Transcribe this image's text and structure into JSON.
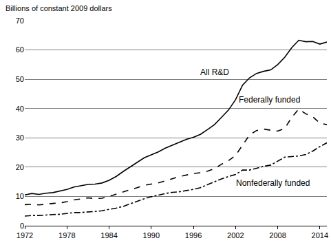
{
  "chart_data": {
    "type": "line",
    "ylabel": "Billions of constant 2009 dollars",
    "x": [
      1972,
      1973,
      1974,
      1975,
      1976,
      1977,
      1978,
      1979,
      1980,
      1981,
      1982,
      1983,
      1984,
      1985,
      1986,
      1987,
      1988,
      1989,
      1990,
      1991,
      1992,
      1993,
      1994,
      1995,
      1996,
      1997,
      1998,
      1999,
      2000,
      2001,
      2002,
      2003,
      2004,
      2005,
      2006,
      2007,
      2008,
      2009,
      2010,
      2011,
      2012,
      2013,
      2014,
      2015
    ],
    "series": [
      {
        "name": "All R&D",
        "color": "#000000",
        "line_style": "solid",
        "values": [
          10.5,
          11,
          10.7,
          11.1,
          11.3,
          11.8,
          12.4,
          13.2,
          13.6,
          14.1,
          14.2,
          14.6,
          15.5,
          16.8,
          18.5,
          20,
          21.5,
          23.2,
          24.2,
          25.2,
          26.5,
          27.5,
          28.5,
          29.5,
          30.2,
          31.2,
          32.8,
          34.5,
          37,
          39.5,
          43,
          48,
          50.5,
          52,
          52.7,
          53.2,
          55,
          57.5,
          60.8,
          63.3,
          62.8,
          62.9,
          62,
          62.7
        ]
      },
      {
        "name": "Federally funded",
        "color": "#000000",
        "line_style": "dash",
        "values": [
          7.2,
          7.3,
          7.1,
          7.4,
          7.6,
          7.8,
          8.2,
          8.8,
          9.2,
          9.5,
          9.3,
          9.4,
          10,
          10.8,
          11.5,
          12.3,
          13,
          13.8,
          14.2,
          14.6,
          15.3,
          16,
          16.8,
          17.3,
          17.8,
          18.1,
          18.6,
          19.5,
          21,
          22.2,
          24,
          27.5,
          31,
          32.5,
          33,
          32.6,
          32.3,
          33.2,
          37,
          39.8,
          38.2,
          37.2,
          35,
          34.5
        ]
      },
      {
        "name": "Nonfederally funded",
        "color": "#000000",
        "line_style": "dashdot",
        "values": [
          3.3,
          3.5,
          3.5,
          3.7,
          3.8,
          3.9,
          4.2,
          4.5,
          4.5,
          4.7,
          4.9,
          5.1,
          5.6,
          6,
          6.6,
          7.5,
          8.4,
          9.2,
          9.9,
          10.5,
          11,
          11.4,
          11.6,
          12,
          12.4,
          13,
          14,
          15,
          16,
          16.8,
          17.5,
          19,
          19,
          19.6,
          20.3,
          20.7,
          22,
          23.4,
          23.6,
          23.8,
          24.3,
          25.5,
          27,
          28.3
        ]
      }
    ],
    "annotations": [
      {
        "text": "All R&D",
        "x": 1999,
        "y": 52.5
      },
      {
        "text": "Federally funded",
        "x": 2006.8,
        "y": 43
      },
      {
        "text": "Nonfederally funded",
        "x": 2007.3,
        "y": 14.5
      }
    ],
    "xlim": [
      1972,
      2015
    ],
    "xticks": [
      1972,
      1978,
      1984,
      1990,
      1996,
      2002,
      2008,
      2014
    ],
    "ylim": [
      0,
      70
    ],
    "yticks": [
      0,
      10,
      20,
      30,
      40,
      50,
      60,
      70
    ],
    "grid": true
  }
}
